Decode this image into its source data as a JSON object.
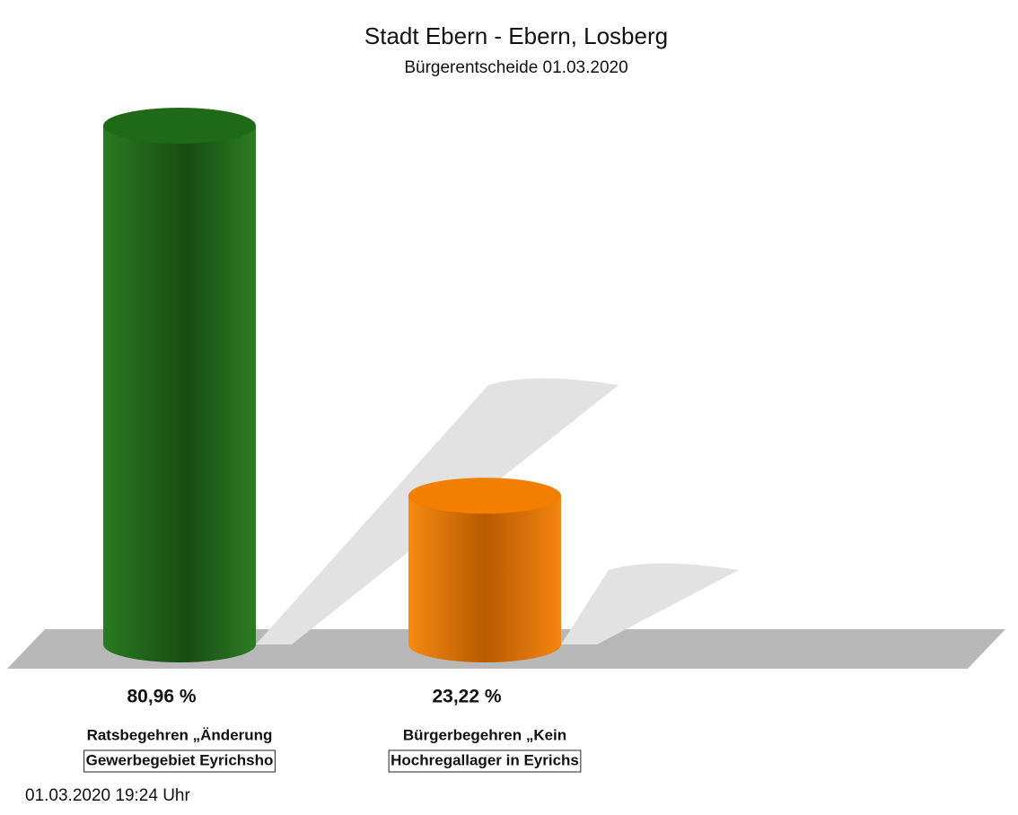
{
  "chart_data": {
    "type": "bar",
    "title": "Stadt Ebern - Ebern, Losberg",
    "subtitle": "Bürgerentscheide 01.03.2020",
    "categories": [
      [
        "Ratsbegehren „Änderung",
        "Gewerbegebiet Eyrichsho"
      ],
      [
        "Bürgerbegehren „Kein",
        "Hochregallager in Eyrichs"
      ]
    ],
    "values": [
      80.96,
      23.22
    ],
    "value_labels": [
      "80,96 %",
      "23,22 %"
    ],
    "colors": [
      "#1f6a17",
      "#f27f00"
    ],
    "footer": "01.03.2020 19:24 Uhr"
  }
}
